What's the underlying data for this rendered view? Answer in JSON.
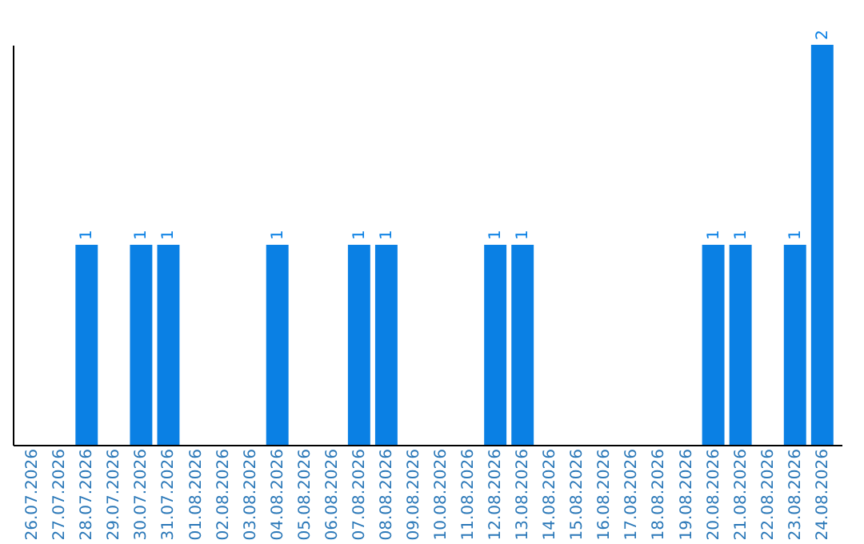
{
  "chart_data": {
    "type": "bar",
    "categories": [
      "26.07.2026",
      "27.07.2026",
      "28.07.2026",
      "29.07.2026",
      "30.07.2026",
      "31.07.2026",
      "01.08.2026",
      "02.08.2026",
      "03.08.2026",
      "04.08.2026",
      "05.08.2026",
      "06.08.2026",
      "07.08.2026",
      "08.08.2026",
      "09.08.2026",
      "10.08.2026",
      "11.08.2026",
      "12.08.2026",
      "13.08.2026",
      "14.08.2026",
      "15.08.2026",
      "16.08.2026",
      "17.08.2026",
      "18.08.2026",
      "19.08.2026",
      "20.08.2026",
      "21.08.2026",
      "22.08.2026",
      "23.08.2026",
      "24.08.2026"
    ],
    "values": [
      0,
      0,
      1,
      0,
      1,
      1,
      0,
      0,
      0,
      1,
      0,
      0,
      1,
      1,
      0,
      0,
      0,
      1,
      1,
      0,
      0,
      0,
      0,
      0,
      0,
      1,
      1,
      0,
      1,
      2
    ],
    "value_labels": [
      null,
      null,
      "1",
      null,
      "1",
      "1",
      null,
      null,
      null,
      "1",
      null,
      null,
      "1",
      "1",
      null,
      null,
      null,
      "1",
      "1",
      null,
      null,
      null,
      null,
      null,
      null,
      "1",
      "1",
      null,
      "1",
      "2"
    ],
    "color": "#0a80e4",
    "tick_labels": "x"
  }
}
